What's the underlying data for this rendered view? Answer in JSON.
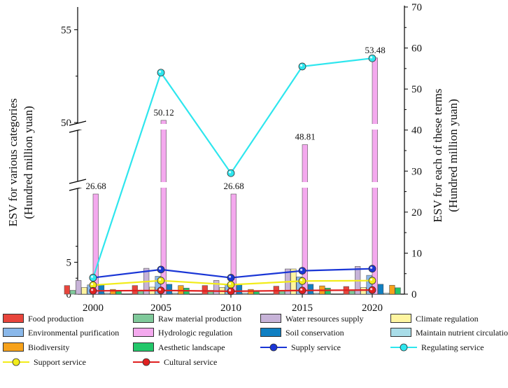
{
  "chart_data": {
    "type": "bar",
    "categories": [
      "2000",
      "2005",
      "2010",
      "2015",
      "2020"
    ],
    "left_axis": {
      "label_lines": [
        "ESV for various categories",
        "(Hundred million yuan)"
      ],
      "ticks": [
        "0",
        "5",
        "50",
        "55"
      ],
      "segments": [
        [
          0,
          9
        ],
        [
          25.5,
          27.5
        ],
        [
          48,
          56
        ]
      ]
    },
    "right_axis": {
      "label_lines": [
        "ESV for each of these terms",
        "(Hundred million yuan)"
      ],
      "ticks": [
        "0",
        "10",
        "20",
        "30",
        "40",
        "50",
        "60",
        "70"
      ],
      "range": [
        0,
        70
      ]
    },
    "bar_series": [
      {
        "name": "Food production",
        "color": "#e8453c",
        "values": [
          1.35,
          1.35,
          1.35,
          1.25,
          1.2
        ]
      },
      {
        "name": "Raw material production",
        "color": "#7fc99a",
        "values": [
          0.6,
          0.6,
          0.6,
          0.6,
          0.55
        ]
      },
      {
        "name": "Water resources supply",
        "color": "#c7b3d8",
        "values": [
          2.15,
          4.05,
          2.15,
          3.95,
          4.35
        ]
      },
      {
        "name": "Climate regulation",
        "color": "#fff5a0",
        "values": [
          1.05,
          1.1,
          1.05,
          3.95,
          1.05
        ]
      },
      {
        "name": "Environmental purification",
        "color": "#8ab8ea",
        "values": [
          1.45,
          2.8,
          1.45,
          2.7,
          2.95
        ]
      },
      {
        "name": "Hydrologic regulation",
        "color": "#f4a9ee",
        "values": [
          26.68,
          50.12,
          26.68,
          48.81,
          53.48
        ]
      },
      {
        "name": "Soil conservation",
        "color": "#0f7fc2",
        "values": [
          1.5,
          1.55,
          1.5,
          1.55,
          1.55
        ]
      },
      {
        "name": "Maintain nutrient circulation",
        "color": "#a9dde8",
        "values": [
          0.15,
          0.15,
          0.15,
          0.15,
          0.15
        ]
      },
      {
        "name": "Biodiversity",
        "color": "#f7a21b",
        "values": [
          0.75,
          1.35,
          0.75,
          1.3,
          1.4
        ]
      },
      {
        "name": "Aesthetic landscape",
        "color": "#22c76a",
        "values": [
          0.55,
          0.95,
          0.55,
          0.95,
          1.0
        ]
      }
    ],
    "line_series": [
      {
        "name": "Supply service",
        "color": "#1a36d6",
        "values": [
          4.0,
          6.0,
          4.0,
          5.7,
          6.2
        ]
      },
      {
        "name": "Regulating service",
        "color": "#2ee6ee",
        "values": [
          4.0,
          54.0,
          29.5,
          55.5,
          57.5
        ]
      },
      {
        "name": "Support service",
        "color": "#f2ec1a",
        "values": [
          2.2,
          3.3,
          2.3,
          3.2,
          3.3
        ]
      },
      {
        "name": "Cultural service",
        "color": "#e02020",
        "values": [
          0.8,
          0.9,
          0.7,
          0.9,
          1.0
        ]
      }
    ],
    "annotations": [
      "26.68",
      "50.12",
      "26.68",
      "48.81",
      "53.48"
    ]
  }
}
